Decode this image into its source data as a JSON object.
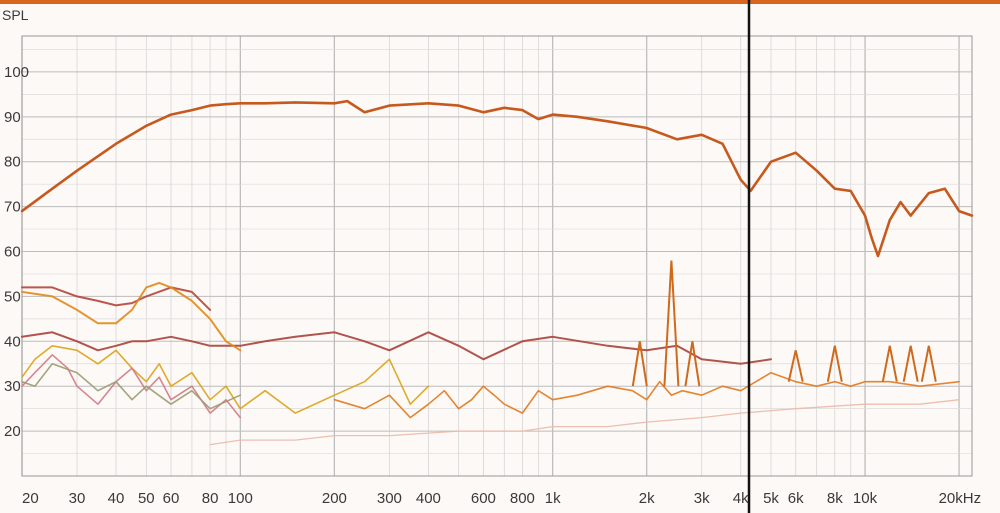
{
  "chart_data": {
    "type": "line",
    "title": "",
    "ylabel": "SPL",
    "xlabel": "",
    "x_scale": "log",
    "xlim": [
      20,
      22000
    ],
    "ylim": [
      10,
      108
    ],
    "grid": true,
    "y_ticks": [
      "100",
      "90",
      "80",
      "70",
      "60",
      "50",
      "40",
      "30",
      "20"
    ],
    "y_tick_values": [
      100,
      90,
      80,
      70,
      60,
      50,
      40,
      30,
      20
    ],
    "x_ticks": [
      {
        "v": 20,
        "label": "20"
      },
      {
        "v": 30,
        "label": "30"
      },
      {
        "v": 40,
        "label": "40"
      },
      {
        "v": 50,
        "label": "50"
      },
      {
        "v": 60,
        "label": "60"
      },
      {
        "v": 80,
        "label": "80"
      },
      {
        "v": 100,
        "label": "100"
      },
      {
        "v": 200,
        "label": "200"
      },
      {
        "v": 300,
        "label": "300"
      },
      {
        "v": 400,
        "label": "400"
      },
      {
        "v": 600,
        "label": "600"
      },
      {
        "v": 800,
        "label": "800"
      },
      {
        "v": 1000,
        "label": "1k"
      },
      {
        "v": 2000,
        "label": "2k"
      },
      {
        "v": 3000,
        "label": "3k"
      },
      {
        "v": 4000,
        "label": "4k"
      },
      {
        "v": 5000,
        "label": "5k"
      },
      {
        "v": 6000,
        "label": "6k"
      },
      {
        "v": 8000,
        "label": "8k"
      },
      {
        "v": 10000,
        "label": "10k"
      },
      {
        "v": 20000,
        "label": "20kHz"
      }
    ],
    "series": [
      {
        "color": "#c65a1e",
        "width": 2.6,
        "x": [
          20,
          25,
          30,
          40,
          50,
          60,
          70,
          80,
          90,
          100,
          120,
          150,
          200,
          220,
          250,
          300,
          400,
          500,
          600,
          700,
          800,
          900,
          1000,
          1200,
          1500,
          2000,
          2500,
          3000,
          3500,
          4000,
          4300,
          5000,
          6000,
          7000,
          8000,
          9000,
          10000,
          10500,
          11000,
          12000,
          13000,
          14000,
          16000,
          18000,
          20000,
          22000
        ],
        "y": [
          69,
          74,
          78,
          84,
          88,
          90.5,
          91.5,
          92.5,
          92.8,
          93,
          93,
          93.2,
          93,
          93.5,
          91,
          92.5,
          93,
          92.5,
          91,
          92,
          91.5,
          89.5,
          90.5,
          90,
          89,
          87.5,
          85,
          86,
          84,
          76,
          73.5,
          80,
          82,
          78,
          74,
          73.5,
          68,
          63,
          59,
          67,
          71,
          68,
          73,
          74,
          69,
          68
        ]
      },
      {
        "color": "#a8423a",
        "width": 2.0,
        "x": [
          20,
          25,
          30,
          35,
          40,
          45,
          50,
          60,
          70,
          80,
          100,
          120,
          150,
          200,
          250,
          300,
          400,
          500,
          600,
          800,
          1000,
          1500,
          2000,
          2500,
          3000,
          4000,
          5000
        ],
        "y": [
          41,
          42,
          40,
          38,
          39,
          40,
          40,
          41,
          40,
          39,
          39,
          40,
          41,
          42,
          40,
          38,
          42,
          39,
          36,
          40,
          41,
          39,
          38,
          39,
          36,
          35,
          36
        ]
      },
      {
        "color": "#b5453a",
        "width": 2.0,
        "x": [
          20,
          25,
          30,
          35,
          40,
          45,
          50,
          60,
          70,
          80
        ],
        "y": [
          52,
          52,
          50,
          49,
          48,
          48.5,
          50,
          52,
          51,
          47
        ]
      },
      {
        "color": "#e08a1a",
        "width": 2.0,
        "x": [
          20,
          25,
          30,
          35,
          40,
          45,
          50,
          55,
          60,
          70,
          80,
          90,
          100
        ],
        "y": [
          51,
          50,
          47,
          44,
          44,
          47,
          52,
          53,
          52,
          49,
          45,
          40,
          38
        ]
      },
      {
        "color": "#d9a21a",
        "width": 1.6,
        "x": [
          20,
          22,
          25,
          30,
          35,
          40,
          45,
          50,
          55,
          60,
          70,
          80,
          90,
          100,
          120,
          150,
          200,
          250,
          300,
          350,
          400
        ],
        "y": [
          32,
          36,
          39,
          38,
          35,
          38,
          34,
          31,
          35,
          30,
          33,
          27,
          30,
          25,
          29,
          24,
          28,
          31,
          36,
          26,
          30
        ]
      },
      {
        "color": "#cf7a86",
        "width": 1.6,
        "x": [
          20,
          22,
          25,
          28,
          30,
          35,
          40,
          45,
          50,
          55,
          60,
          70,
          80,
          90,
          100
        ],
        "y": [
          30,
          33,
          37,
          34,
          30,
          26,
          31,
          34,
          29,
          32,
          27,
          30,
          24,
          27,
          23
        ]
      },
      {
        "color": "#9a9a70",
        "width": 1.6,
        "x": [
          20,
          22,
          25,
          30,
          35,
          40,
          45,
          50,
          60,
          70,
          80,
          100
        ],
        "y": [
          31,
          30,
          35,
          33,
          29,
          31,
          27,
          30,
          26,
          29,
          25,
          28
        ]
      },
      {
        "color": "#e0781e",
        "width": 1.6,
        "x": [
          200,
          250,
          300,
          350,
          400,
          450,
          500,
          550,
          600,
          650,
          700,
          800,
          900,
          1000,
          1200,
          1500,
          1800,
          2000,
          2200,
          2400,
          2600,
          3000,
          3500,
          4000,
          5000,
          6000,
          7000,
          8000,
          9000,
          10000,
          12000,
          15000,
          20000
        ],
        "y": [
          27,
          25,
          28,
          23,
          26,
          29,
          25,
          27,
          30,
          28,
          26,
          24,
          29,
          27,
          28,
          30,
          29,
          27,
          31,
          28,
          29,
          28,
          30,
          29,
          33,
          31,
          30,
          31,
          30,
          31,
          31,
          30,
          31
        ]
      },
      {
        "color": "#eab8a8",
        "width": 1.3,
        "x": [
          80,
          100,
          150,
          200,
          300,
          500,
          800,
          1000,
          1500,
          2000,
          3000,
          4000,
          6000,
          10000,
          15000,
          20000
        ],
        "y": [
          17,
          18,
          18,
          19,
          19,
          20,
          20,
          21,
          21,
          22,
          23,
          24,
          25,
          26,
          26,
          27
        ]
      }
    ],
    "peaks": [
      {
        "f": 2400,
        "y": 58,
        "base": 30
      },
      {
        "f": 1900,
        "y": 40,
        "base": 30
      },
      {
        "f": 2800,
        "y": 40,
        "base": 30
      },
      {
        "f": 6000,
        "y": 38,
        "base": 31
      },
      {
        "f": 8000,
        "y": 39,
        "base": 31
      },
      {
        "f": 12000,
        "y": 39,
        "base": 31
      },
      {
        "f": 14000,
        "y": 39,
        "base": 31
      },
      {
        "f": 16000,
        "y": 39,
        "base": 31
      }
    ],
    "annotations": []
  }
}
